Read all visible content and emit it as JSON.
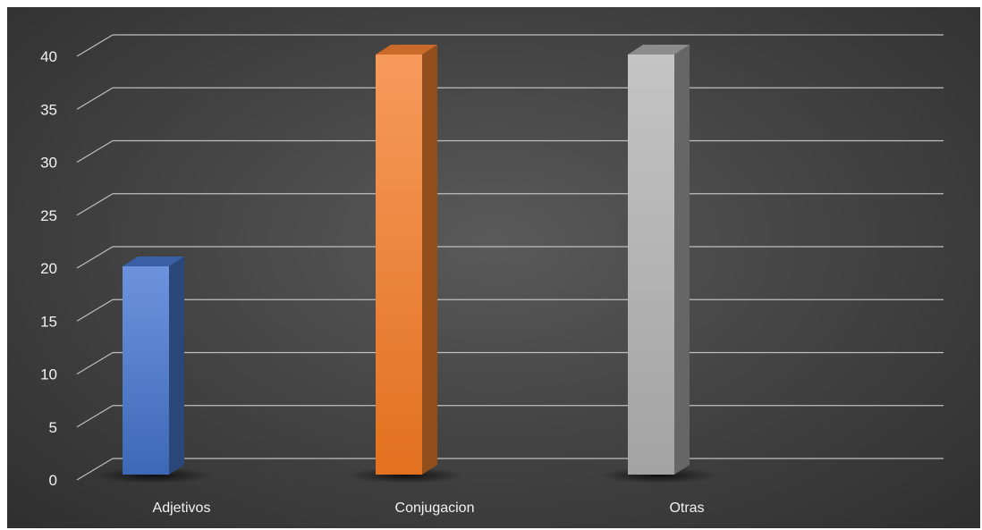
{
  "chart_data": {
    "type": "bar",
    "style": "3d-column",
    "title": "",
    "xlabel": "",
    "ylabel": "",
    "categories": [
      "Adjetivos",
      "Conjugacion",
      "Otras"
    ],
    "values": [
      20,
      40,
      40
    ],
    "ylim": [
      0,
      40
    ],
    "ytick_step": 5,
    "grid": true,
    "legend": "none",
    "colors": [
      "#4472c4",
      "#ed7d31",
      "#a5a5a5"
    ],
    "background": "#404040"
  }
}
